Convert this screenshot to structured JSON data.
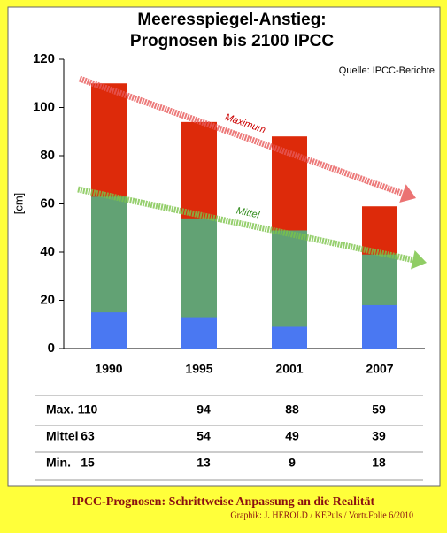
{
  "chart_data": {
    "type": "bar",
    "title": "Meeresspiegel-Anstieg:",
    "subtitle": "Prognosen bis 2100 IPCC",
    "source": "Quelle: IPCC-Berichte",
    "y_label": "[cm]",
    "categories": [
      "1990",
      "1995",
      "2001",
      "2007"
    ],
    "series": [
      {
        "name": "Max.",
        "color": "#dd2a0a",
        "values": [
          110,
          94,
          88,
          59
        ]
      },
      {
        "name": "Mittel",
        "color": "#62a274",
        "values": [
          63,
          54,
          49,
          39
        ]
      },
      {
        "name": "Min.",
        "color": "#4a78f2",
        "values": [
          15,
          13,
          9,
          18
        ]
      }
    ],
    "annotations": [
      "Maximum",
      "Mittel"
    ],
    "ylim": [
      0,
      120
    ],
    "yticks": [
      0,
      20,
      40,
      60,
      80,
      100,
      120
    ]
  },
  "footer": {
    "caption": "IPCC-Prognosen: Schrittweise Anpassung an die Realität",
    "credit": "Graphik: J. HEROLD / KEPuls / Vortr.Folie 6/2010"
  }
}
